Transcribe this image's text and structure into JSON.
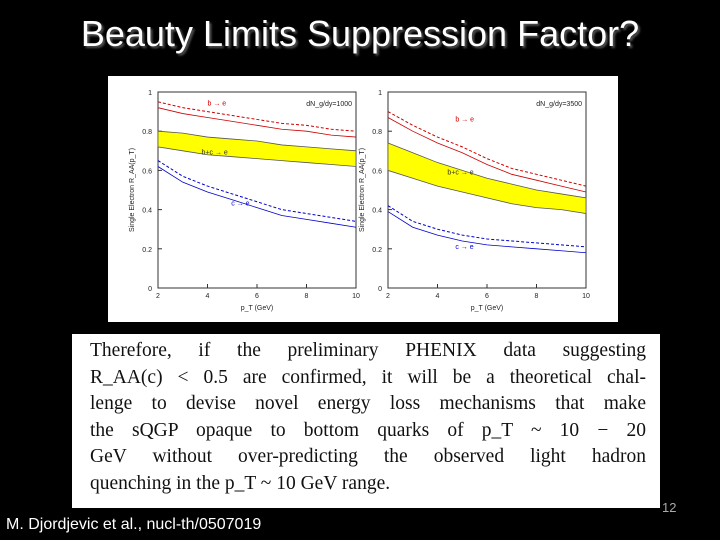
{
  "slide": {
    "title": "Beauty Limits Suppression Factor?",
    "citation": "M. Djordjevic et al., nucl-th/0507019",
    "slide_number": "12"
  },
  "quote": {
    "lines": [
      "Therefore, if the preliminary PHENIX data suggesting",
      "R_AA(c) < 0.5 are confirmed, it will be a theoretical chal-",
      "lenge to devise novel energy loss mechanisms that make",
      "the sQGP opaque to bottom quarks of p_T ~ 10 − 20",
      "GeV without over-predicting the observed light hadron",
      "quenching in the p_T ~ 10 GeV range."
    ]
  },
  "chart_data": [
    {
      "type": "line",
      "annotation": "dN_g/dy=1000",
      "xlabel": "p_T (GeV)",
      "ylabel": "Single Electron R_AA(p_T)",
      "xlim": [
        2,
        10
      ],
      "ylim": [
        0,
        1
      ],
      "x_ticks": [
        "2",
        "4",
        "6",
        "8",
        "10"
      ],
      "y_ticks": [
        "0",
        "0.2",
        "0.4",
        "0.6",
        "0.8",
        "1"
      ],
      "series": [
        {
          "name": "b → e",
          "style": "dashed",
          "color": "#cc0000",
          "x": [
            2,
            3,
            4,
            5,
            6,
            7,
            8,
            9,
            10
          ],
          "y": [
            0.95,
            0.92,
            0.9,
            0.88,
            0.86,
            0.84,
            0.83,
            0.81,
            0.8
          ]
        },
        {
          "name": "b+c → e",
          "style": "band",
          "color": "#ffff00",
          "x": [
            2,
            3,
            4,
            5,
            6,
            7,
            8,
            9,
            10
          ],
          "y_low": [
            0.72,
            0.7,
            0.68,
            0.67,
            0.66,
            0.65,
            0.64,
            0.63,
            0.62
          ],
          "y_high": [
            0.8,
            0.79,
            0.77,
            0.76,
            0.75,
            0.73,
            0.72,
            0.71,
            0.7
          ]
        },
        {
          "name": "c → e",
          "style": "dashed",
          "color": "#0000cc",
          "x": [
            2,
            3,
            4,
            5,
            6,
            7,
            8,
            9,
            10
          ],
          "y": [
            0.65,
            0.57,
            0.52,
            0.48,
            0.44,
            0.4,
            0.38,
            0.36,
            0.34
          ]
        }
      ]
    },
    {
      "type": "line",
      "annotation": "dN_g/dy=3500",
      "xlabel": "p_T (GeV)",
      "ylabel": "Single Electron R_AA(p_T)",
      "xlim": [
        2,
        10
      ],
      "ylim": [
        0,
        1
      ],
      "x_ticks": [
        "2",
        "4",
        "6",
        "8",
        "10"
      ],
      "y_ticks": [
        "0",
        "0.2",
        "0.4",
        "0.6",
        "0.8",
        "1"
      ],
      "series": [
        {
          "name": "b → e",
          "style": "dashed",
          "color": "#cc0000",
          "x": [
            2,
            3,
            4,
            5,
            6,
            7,
            8,
            9,
            10
          ],
          "y": [
            0.9,
            0.83,
            0.77,
            0.72,
            0.66,
            0.61,
            0.58,
            0.55,
            0.52
          ]
        },
        {
          "name": "b+c → e",
          "style": "band",
          "color": "#ffff00",
          "x": [
            2,
            3,
            4,
            5,
            6,
            7,
            8,
            9,
            10
          ],
          "y_low": [
            0.6,
            0.56,
            0.52,
            0.49,
            0.46,
            0.43,
            0.41,
            0.4,
            0.38
          ],
          "y_high": [
            0.74,
            0.69,
            0.64,
            0.6,
            0.56,
            0.53,
            0.5,
            0.48,
            0.46
          ]
        },
        {
          "name": "c → e",
          "style": "dashed",
          "color": "#0000cc",
          "x": [
            2,
            3,
            4,
            5,
            6,
            7,
            8,
            9,
            10
          ],
          "y": [
            0.42,
            0.34,
            0.3,
            0.27,
            0.25,
            0.24,
            0.23,
            0.22,
            0.21
          ]
        }
      ]
    }
  ]
}
